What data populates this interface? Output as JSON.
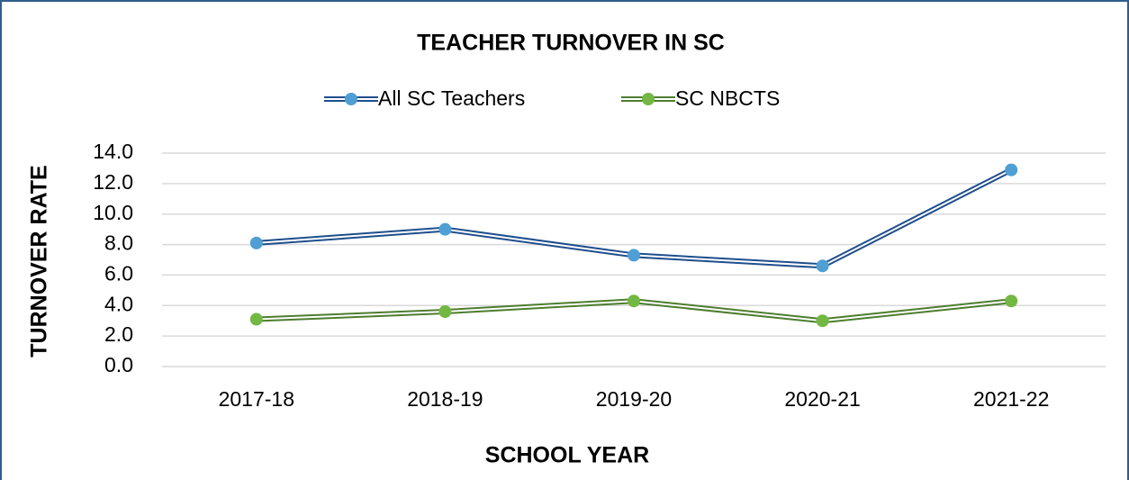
{
  "chart_data": {
    "type": "line",
    "title": "TEACHER TURNOVER IN SC",
    "x_label": "SCHOOL YEAR",
    "y_label": "TURNOVER RATE",
    "categories": [
      "2017-18",
      "2018-19",
      "2019-20",
      "2020-21",
      "2021-22"
    ],
    "series": [
      {
        "name": "All SC Teachers",
        "color": "#1f4e8c",
        "marker_color": "#4f9fd4",
        "values": [
          8.1,
          9.0,
          7.3,
          6.6,
          12.9
        ]
      },
      {
        "name": "SC NBCTS",
        "color": "#4e7d2f",
        "marker_color": "#72b843",
        "values": [
          3.1,
          3.6,
          4.3,
          3.0,
          4.3
        ]
      }
    ],
    "ylim": [
      0,
      14
    ],
    "yticks": [
      {
        "value": 0,
        "label": "0.0"
      },
      {
        "value": 2,
        "label": "2.0"
      },
      {
        "value": 4,
        "label": "4.0"
      },
      {
        "value": 6,
        "label": "6.0"
      },
      {
        "value": 8,
        "label": "8.0"
      },
      {
        "value": 10,
        "label": "10.0"
      },
      {
        "value": 12,
        "label": "12.0"
      },
      {
        "value": 14,
        "label": "14.0"
      }
    ],
    "grid": true,
    "legend": "top"
  }
}
